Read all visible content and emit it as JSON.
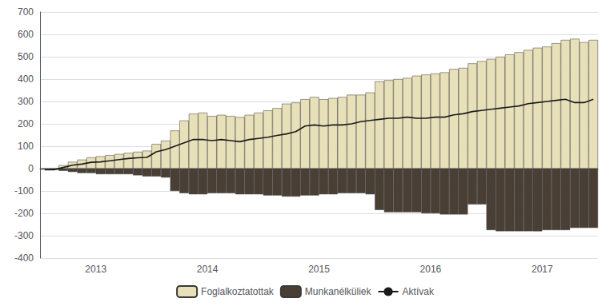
{
  "chart_data": {
    "type": "bar",
    "categories": [
      "2013",
      "2013",
      "2013",
      "2013",
      "2013",
      "2013",
      "2013",
      "2013",
      "2013",
      "2013",
      "2013",
      "2013",
      "2014",
      "2014",
      "2014",
      "2014",
      "2014",
      "2014",
      "2014",
      "2014",
      "2014",
      "2014",
      "2014",
      "2014",
      "2015",
      "2015",
      "2015",
      "2015",
      "2015",
      "2015",
      "2015",
      "2015",
      "2015",
      "2015",
      "2015",
      "2015",
      "2016",
      "2016",
      "2016",
      "2016",
      "2016",
      "2016",
      "2016",
      "2016",
      "2016",
      "2016",
      "2016",
      "2016",
      "2017",
      "2017",
      "2017",
      "2017",
      "2017",
      "2017",
      "2017",
      "2017",
      "2017",
      "2017",
      "2017",
      "2017"
    ],
    "series": [
      {
        "name": "Foglalkoztatottak",
        "type": "bar",
        "color": "#e8e0b8",
        "values": [
          -5,
          0,
          15,
          30,
          40,
          50,
          55,
          60,
          65,
          70,
          75,
          80,
          110,
          125,
          170,
          215,
          245,
          250,
          235,
          240,
          235,
          230,
          240,
          250,
          260,
          270,
          290,
          295,
          310,
          320,
          310,
          315,
          320,
          330,
          330,
          340,
          390,
          395,
          400,
          405,
          415,
          420,
          425,
          430,
          445,
          450,
          470,
          480,
          490,
          500,
          510,
          520,
          530,
          540,
          545,
          560,
          575,
          580,
          565,
          575
        ]
      },
      {
        "name": "Munkanélküliek",
        "type": "bar",
        "color": "#4a3f35",
        "values": [
          0,
          -5,
          -10,
          -15,
          -20,
          -20,
          -25,
          -25,
          -25,
          -25,
          -30,
          -35,
          -35,
          -40,
          -100,
          -110,
          -115,
          -115,
          -110,
          -110,
          -110,
          -115,
          -115,
          -115,
          -120,
          -120,
          -125,
          -125,
          -120,
          -120,
          -115,
          -115,
          -110,
          -110,
          -110,
          -115,
          -185,
          -195,
          -195,
          -195,
          -195,
          -200,
          -200,
          -205,
          -205,
          -205,
          -160,
          -160,
          -275,
          -280,
          -280,
          -280,
          -280,
          -280,
          -275,
          -275,
          -275,
          -265,
          -265,
          -265
        ]
      },
      {
        "name": "Aktívak",
        "type": "line",
        "color": "#1a1a1a",
        "values": [
          -5,
          -5,
          5,
          15,
          20,
          28,
          30,
          35,
          40,
          45,
          48,
          50,
          75,
          85,
          100,
          115,
          130,
          130,
          125,
          130,
          125,
          120,
          130,
          135,
          140,
          148,
          155,
          165,
          190,
          195,
          190,
          195,
          195,
          200,
          210,
          215,
          220,
          225,
          225,
          230,
          225,
          225,
          230,
          230,
          240,
          245,
          255,
          260,
          265,
          270,
          275,
          280,
          290,
          295,
          300,
          305,
          310,
          295,
          295,
          310
        ]
      }
    ],
    "ylim": [
      -400,
      700
    ],
    "yticks": [
      -400,
      -300,
      -200,
      -100,
      0,
      100,
      200,
      300,
      400,
      500,
      600,
      700
    ],
    "grid": true,
    "legend": "bottom"
  }
}
